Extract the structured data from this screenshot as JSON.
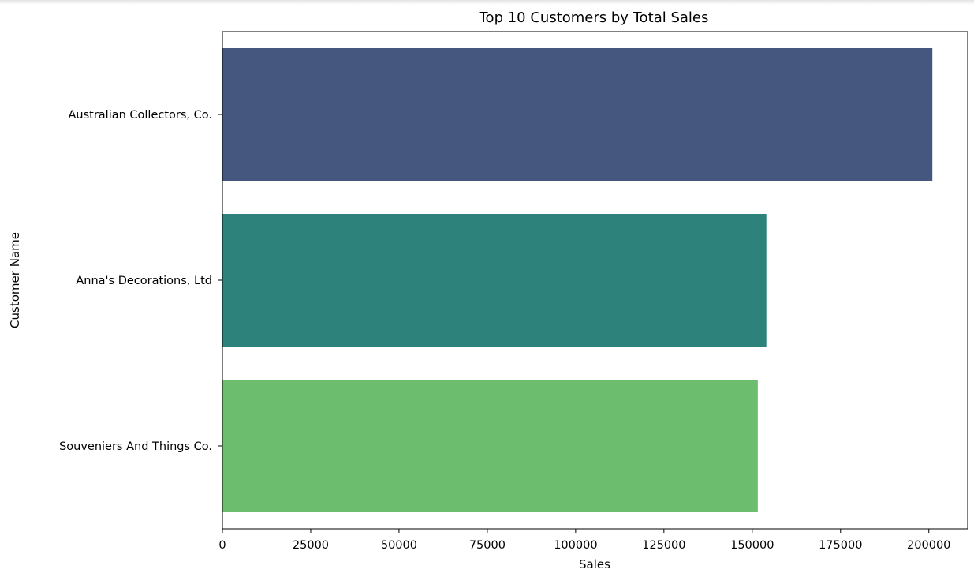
{
  "chart_data": {
    "type": "bar",
    "orientation": "horizontal",
    "title": "Top 10 Customers by Total Sales",
    "xlabel": "Sales",
    "ylabel": "Customer Name",
    "categories": [
      "Australian Collectors, Co.",
      "Anna's Decorations, Ltd",
      "Souveniers And Things Co."
    ],
    "values": [
      200995,
      154000,
      151570
    ],
    "colors": [
      "#46577f",
      "#2e827c",
      "#6dbd6e"
    ],
    "xlim": [
      0,
      211000
    ],
    "xticks": [
      0,
      25000,
      50000,
      75000,
      100000,
      125000,
      150000,
      175000,
      200000
    ],
    "xtick_labels": [
      "0",
      "25000",
      "50000",
      "75000",
      "100000",
      "125000",
      "150000",
      "175000",
      "200000"
    ],
    "grid": false,
    "legend": "none"
  }
}
